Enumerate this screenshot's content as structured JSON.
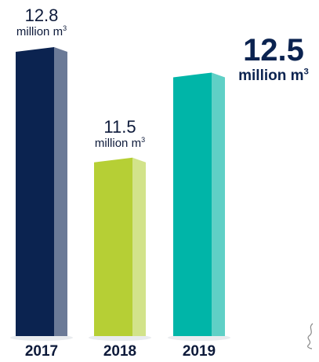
{
  "chart_data": {
    "type": "bar",
    "title": "",
    "xlabel": "",
    "ylabel": "",
    "unit_text": "million m",
    "unit_sup": "3",
    "categories": [
      "2017",
      "2018",
      "2019"
    ],
    "values": [
      12.8,
      11.5,
      12.5
    ],
    "labels": [
      "12.8",
      "11.5",
      "12.5"
    ],
    "highlight_index": 2,
    "ylim": [
      9.4,
      12.8
    ],
    "grid": false,
    "legend": "none",
    "colors": [
      {
        "front": "#0b2350",
        "side": "#6b7a97"
      },
      {
        "front": "#b6cf35",
        "side": "#d2e38a"
      },
      {
        "front": "#00b5a8",
        "side": "#5fd0c6"
      }
    ]
  }
}
